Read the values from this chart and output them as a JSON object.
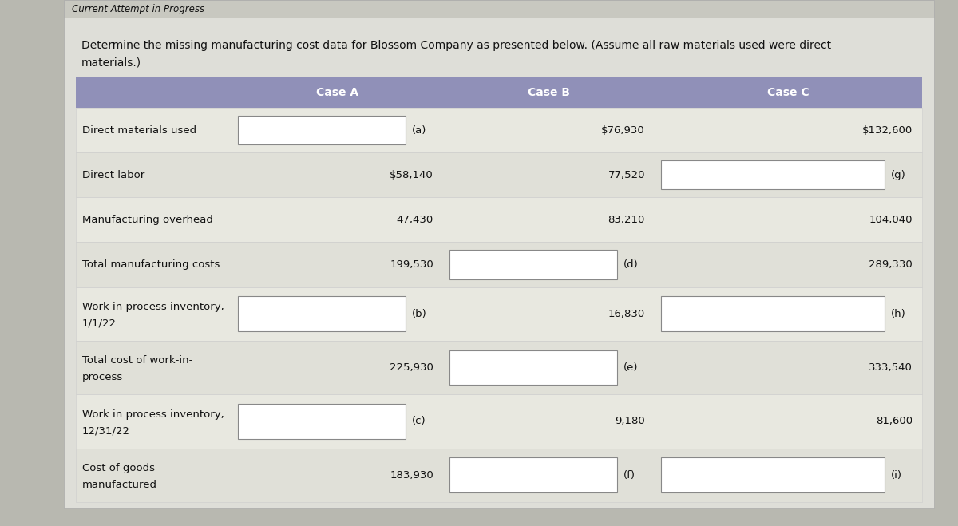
{
  "title_bar": "Current Attempt in Progress",
  "description_line1": "Determine the missing manufacturing cost data for Blossom Company as presented below. (Assume all raw materials used were direct",
  "description_line2": "materials.)",
  "header_bg": "#9090b8",
  "header_text_color": "#ffffff",
  "row_labels": [
    "Direct materials used",
    "Direct labor",
    "Manufacturing overhead",
    "Total manufacturing costs",
    "Work in process inventory,\n1/1/22",
    "Total cost of work-in-\nprocess",
    "Work in process inventory,\n12/31/22",
    "Cost of goods\nmanufactured"
  ],
  "case_a_values": [
    "(a)",
    "$58,140",
    "47,430",
    "199,530",
    "(b)",
    "225,930",
    "(c)",
    "183,930"
  ],
  "case_b_values": [
    "$76,930",
    "77,520",
    "83,210",
    "(d)",
    "16,830",
    "(e)",
    "9,180",
    "(f)"
  ],
  "case_c_values": [
    "$132,600",
    "(g)",
    "104,040",
    "289,330",
    "(h)",
    "333,540",
    "81,600",
    "(i)"
  ],
  "case_a_boxes": [
    true,
    false,
    false,
    false,
    true,
    false,
    true,
    false
  ],
  "case_b_boxes": [
    false,
    false,
    false,
    true,
    false,
    true,
    false,
    true
  ],
  "case_c_boxes": [
    false,
    true,
    false,
    false,
    true,
    false,
    false,
    true
  ],
  "outer_bg": "#b8b8b0",
  "content_bg": "#deded8",
  "title_bg": "#c8c8c0",
  "table_row_bg": "#e8e8e0",
  "table_row_alt": "#e0e0d8",
  "font_family": "DejaVu Sans",
  "title_fontsize": 8.5,
  "header_fontsize": 10,
  "body_fontsize": 9.5,
  "desc_fontsize": 10
}
